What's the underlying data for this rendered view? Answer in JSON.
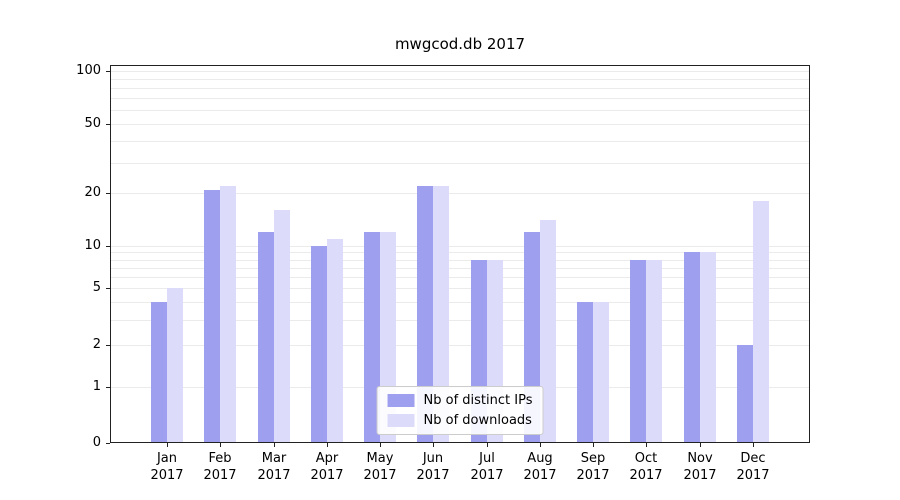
{
  "chart_data": {
    "type": "bar",
    "title": "mwgcod.db 2017",
    "categories": [
      "Jan",
      "Feb",
      "Mar",
      "Apr",
      "May",
      "Jun",
      "Jul",
      "Aug",
      "Sep",
      "Oct",
      "Nov",
      "Dec"
    ],
    "category_year": "2017",
    "series": [
      {
        "name": "Nb of distinct IPs",
        "color": "#9f9ff0",
        "values": [
          4,
          21,
          12,
          10,
          12,
          22,
          8,
          12,
          4,
          8,
          9,
          2
        ]
      },
      {
        "name": "Nb of downloads",
        "color": "#dcdcfa",
        "values": [
          5,
          22,
          16,
          11,
          12,
          22,
          8,
          14,
          4,
          8,
          9,
          18
        ]
      }
    ],
    "yscale": "symlog",
    "yticks": [
      0,
      1,
      2,
      5,
      10,
      20,
      50,
      100
    ],
    "ylim": [
      0,
      110
    ],
    "grid": true,
    "legend_position": "lower center"
  }
}
